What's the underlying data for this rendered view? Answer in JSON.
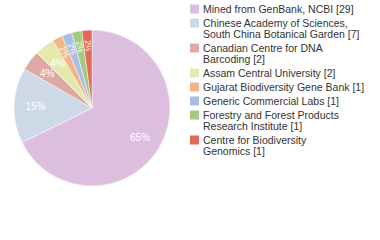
{
  "chart_data": {
    "type": "pie",
    "categories": [
      "Mined from GenBank, NCBI [29]",
      "Chinese Academy of Sciences,\nSouth China Botanical Garden [7]",
      "Canadian Centre for DNA\nBarcoding [2]",
      "Assam Central University [2]",
      "Gujarat Biodiversity Gene Bank [1]",
      "Generic Commercial Labs [1]",
      "Forestry and Forest Products\nResearch Institute [1]",
      "Centre for Biodiversity\nGenomics [1]"
    ],
    "values": [
      65,
      15,
      4,
      4,
      2,
      2,
      2,
      2
    ],
    "value_labels": [
      "65%",
      "15%",
      "4%",
      "4%",
      "2%",
      "2%",
      "2%",
      "2%"
    ],
    "colors": [
      "#dcbedf",
      "#cdd9e6",
      "#dea9a3",
      "#e5e9ae",
      "#f2b485",
      "#a9bde6",
      "#a1cc7e",
      "#e06957"
    ],
    "data_labels": true,
    "legend": "right"
  }
}
